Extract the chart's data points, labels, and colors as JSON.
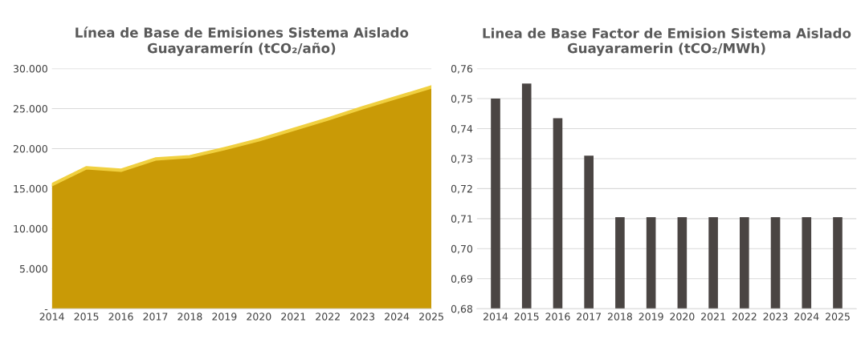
{
  "chart_data": [
    {
      "type": "area",
      "title": "Línea de Base de Emisiones Sistema Aislado\nGuayaramerín (tCO₂/año)",
      "categories": [
        "2014",
        "2015",
        "2016",
        "2017",
        "2018",
        "2019",
        "2020",
        "2021",
        "2022",
        "2023",
        "2024",
        "2025"
      ],
      "series": [
        {
          "color": "#c99a06",
          "values": [
            15500,
            17600,
            17300,
            18700,
            19000,
            20000,
            21100,
            22400,
            23700,
            25100,
            26400,
            27700
          ]
        }
      ],
      "ylim": [
        0,
        30000
      ],
      "yticks": [
        {
          "value": 0,
          "label": "-"
        },
        {
          "value": 5000,
          "label": "5.000"
        },
        {
          "value": 10000,
          "label": "10.000"
        },
        {
          "value": 15000,
          "label": "15.000"
        },
        {
          "value": 20000,
          "label": "20.000"
        },
        {
          "value": 25000,
          "label": "25.000"
        },
        {
          "value": 30000,
          "label": "30.000"
        }
      ],
      "grid": "y"
    },
    {
      "type": "bar",
      "title": "Linea de Base Factor de Emision Sistema Aislado\nGuayaramerin (tCO₂/MWh)",
      "categories": [
        "2014",
        "2015",
        "2016",
        "2017",
        "2018",
        "2019",
        "2020",
        "2021",
        "2022",
        "2023",
        "2024",
        "2025"
      ],
      "series": [
        {
          "color": "#4a4543",
          "values": [
            0.75,
            0.755,
            0.7435,
            0.731,
            0.7105,
            0.7105,
            0.7105,
            0.7105,
            0.7105,
            0.7105,
            0.7105,
            0.7105
          ]
        }
      ],
      "ylim": [
        0.68,
        0.76
      ],
      "yticks": [
        {
          "value": 0.68,
          "label": "0,68"
        },
        {
          "value": 0.69,
          "label": "0,69"
        },
        {
          "value": 0.7,
          "label": "0,70"
        },
        {
          "value": 0.71,
          "label": "0,71"
        },
        {
          "value": 0.72,
          "label": "0,72"
        },
        {
          "value": 0.73,
          "label": "0,73"
        },
        {
          "value": 0.74,
          "label": "0,74"
        },
        {
          "value": 0.75,
          "label": "0,75"
        },
        {
          "value": 0.76,
          "label": "0,76"
        }
      ],
      "grid": "y"
    }
  ]
}
